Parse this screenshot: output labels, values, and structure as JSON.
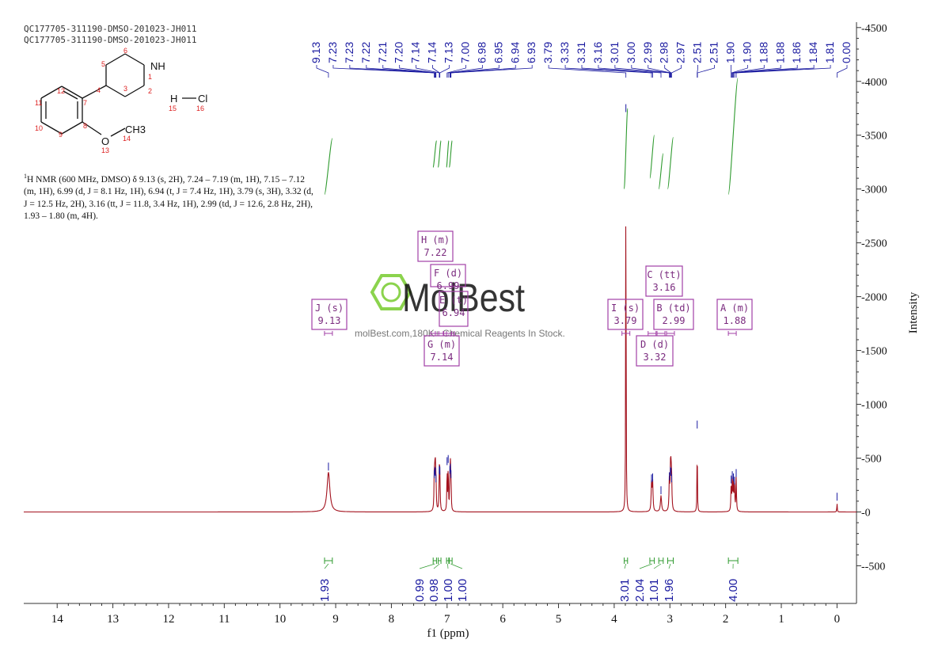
{
  "header": {
    "line1": "QC177705-311190-DMSO-201023-JH011",
    "line2": "QC177705-311190-DMSO-201023-JH011"
  },
  "nmr_description": {
    "prefix_sup": "1",
    "text": "H NMR (600 MHz, DMSO) δ 9.13 (s, 2H), 7.24 – 7.19 (m, 1H), 7.15 – 7.12 (m, 1H), 6.99 (d, J = 8.1 Hz, 1H), 6.94 (t, J = 7.4 Hz, 1H), 3.79 (s, 3H), 3.32 (d, J = 12.5 Hz, 2H), 3.16 (tt, J = 11.8, 3.4 Hz, 1H), 2.99 (td, J = 12.6, 2.8 Hz, 2H), 1.93 – 1.80 (m, 4H)."
  },
  "structure": {
    "atoms": [
      "NH",
      "O",
      "CH3",
      "H",
      "Cl"
    ],
    "numbers": [
      "1",
      "2",
      "3",
      "4",
      "5",
      "6",
      "7",
      "8",
      "9",
      "10",
      "11",
      "12",
      "13",
      "14",
      "15",
      "16"
    ]
  },
  "watermark": {
    "brand": "MolBest",
    "tagline": "molBest.com,180K+ Chemical Reagents In Stock."
  },
  "colors": {
    "spectrum": "#a3121e",
    "integral": "#2e9a2e",
    "peak_label": "#1a1aa0",
    "annotation_box": "#a23fa6",
    "axis": "#333333",
    "watermark": "#7fcf3a"
  },
  "chart_data": {
    "type": "line",
    "title": "",
    "xlabel": "f1 (ppm)",
    "ylabel": "Intensity",
    "xlim": [
      14.6,
      -0.35
    ],
    "ylim": [
      -850,
      4550
    ],
    "x_ticks": [
      14,
      13,
      12,
      11,
      10,
      9,
      8,
      7,
      6,
      5,
      4,
      3,
      2,
      1,
      0
    ],
    "y_ticks": [
      -500,
      0,
      500,
      1000,
      1500,
      2000,
      2500,
      3000,
      3500,
      4000,
      4500
    ],
    "peaks": [
      {
        "ppm": 9.13,
        "height": 370,
        "width": 0.03
      },
      {
        "ppm": 7.23,
        "height": 300,
        "width": 0.006
      },
      {
        "ppm": 7.22,
        "height": 330,
        "width": 0.006
      },
      {
        "ppm": 7.21,
        "height": 320,
        "width": 0.006
      },
      {
        "ppm": 7.2,
        "height": 260,
        "width": 0.006
      },
      {
        "ppm": 7.14,
        "height": 340,
        "width": 0.006
      },
      {
        "ppm": 7.13,
        "height": 330,
        "width": 0.006
      },
      {
        "ppm": 7.0,
        "height": 420,
        "width": 0.005
      },
      {
        "ppm": 6.98,
        "height": 440,
        "width": 0.005
      },
      {
        "ppm": 6.95,
        "height": 340,
        "width": 0.005
      },
      {
        "ppm": 6.94,
        "height": 360,
        "width": 0.005
      },
      {
        "ppm": 6.93,
        "height": 300,
        "width": 0.005
      },
      {
        "ppm": 3.79,
        "height": 3700,
        "width": 0.004
      },
      {
        "ppm": 3.33,
        "height": 260,
        "width": 0.008
      },
      {
        "ppm": 3.31,
        "height": 270,
        "width": 0.008
      },
      {
        "ppm": 3.16,
        "height": 150,
        "width": 0.012
      },
      {
        "ppm": 3.01,
        "height": 280,
        "width": 0.007
      },
      {
        "ppm": 2.99,
        "height": 330,
        "width": 0.007
      },
      {
        "ppm": 2.98,
        "height": 320,
        "width": 0.007
      },
      {
        "ppm": 2.97,
        "height": 260,
        "width": 0.007
      },
      {
        "ppm": 2.51,
        "height": 760,
        "width": 0.004
      },
      {
        "ppm": 1.9,
        "height": 250,
        "width": 0.006
      },
      {
        "ppm": 1.88,
        "height": 290,
        "width": 0.006
      },
      {
        "ppm": 1.86,
        "height": 270,
        "width": 0.006
      },
      {
        "ppm": 1.84,
        "height": 240,
        "width": 0.006
      },
      {
        "ppm": 1.81,
        "height": 310,
        "width": 0.006
      },
      {
        "ppm": 0.0,
        "height": 90,
        "width": 0.004
      }
    ],
    "peak_labels": [
      {
        "text": "9.13",
        "ppm": 9.13
      },
      {
        "text": "7.23",
        "ppm": 7.23
      },
      {
        "text": "7.23",
        "ppm": 7.225
      },
      {
        "text": "7.22",
        "ppm": 7.22
      },
      {
        "text": "7.21",
        "ppm": 7.21
      },
      {
        "text": "7.20",
        "ppm": 7.2
      },
      {
        "text": "7.14",
        "ppm": 7.14
      },
      {
        "text": "7.14",
        "ppm": 7.135
      },
      {
        "text": "7.13",
        "ppm": 7.13
      },
      {
        "text": "7.00",
        "ppm": 7.0
      },
      {
        "text": "6.98",
        "ppm": 6.98
      },
      {
        "text": "6.95",
        "ppm": 6.95
      },
      {
        "text": "6.94",
        "ppm": 6.94
      },
      {
        "text": "6.93",
        "ppm": 6.93
      },
      {
        "text": "3.79",
        "ppm": 3.79
      },
      {
        "text": "3.33",
        "ppm": 3.33
      },
      {
        "text": "3.31",
        "ppm": 3.31
      },
      {
        "text": "3.16",
        "ppm": 3.16
      },
      {
        "text": "3.01",
        "ppm": 3.01
      },
      {
        "text": "3.00",
        "ppm": 3.0
      },
      {
        "text": "2.99",
        "ppm": 2.99
      },
      {
        "text": "2.98",
        "ppm": 2.98
      },
      {
        "text": "2.97",
        "ppm": 2.97
      },
      {
        "text": "2.51",
        "ppm": 2.51
      },
      {
        "text": "2.51",
        "ppm": 2.505
      },
      {
        "text": "1.90",
        "ppm": 1.9
      },
      {
        "text": "1.90",
        "ppm": 1.895
      },
      {
        "text": "1.88",
        "ppm": 1.88
      },
      {
        "text": "1.88",
        "ppm": 1.875
      },
      {
        "text": "1.86",
        "ppm": 1.86
      },
      {
        "text": "1.84",
        "ppm": 1.84
      },
      {
        "text": "1.81",
        "ppm": 1.81
      },
      {
        "text": "0.00",
        "ppm": 0.0
      }
    ],
    "integrals": [
      {
        "from": 9.2,
        "to": 9.06,
        "value": "1.93"
      },
      {
        "from": 7.25,
        "to": 7.19,
        "value": "0.99"
      },
      {
        "from": 7.16,
        "to": 7.11,
        "value": "0.98"
      },
      {
        "from": 7.01,
        "to": 6.97,
        "value": "1.00"
      },
      {
        "from": 6.96,
        "to": 6.91,
        "value": "1.00"
      },
      {
        "from": 3.82,
        "to": 3.76,
        "value": "3.01"
      },
      {
        "from": 3.36,
        "to": 3.28,
        "value": "2.04"
      },
      {
        "from": 3.2,
        "to": 3.12,
        "value": "1.01"
      },
      {
        "from": 3.04,
        "to": 2.94,
        "value": "1.96"
      },
      {
        "from": 1.95,
        "to": 1.78,
        "value": "4.00"
      }
    ],
    "multiplets": [
      {
        "letter": "J",
        "type": "s",
        "shift": "9.13"
      },
      {
        "letter": "H",
        "type": "m",
        "shift": "7.22"
      },
      {
        "letter": "F",
        "type": "d",
        "shift": "6.99"
      },
      {
        "letter": "E",
        "type": "t",
        "shift": "6.94"
      },
      {
        "letter": "G",
        "type": "m",
        "shift": "7.14"
      },
      {
        "letter": "I",
        "type": "s",
        "shift": "3.79"
      },
      {
        "letter": "C",
        "type": "tt",
        "shift": "3.16"
      },
      {
        "letter": "B",
        "type": "td",
        "shift": "2.99"
      },
      {
        "letter": "D",
        "type": "d",
        "shift": "3.32"
      },
      {
        "letter": "A",
        "type": "m",
        "shift": "1.88"
      }
    ],
    "grid": false
  }
}
